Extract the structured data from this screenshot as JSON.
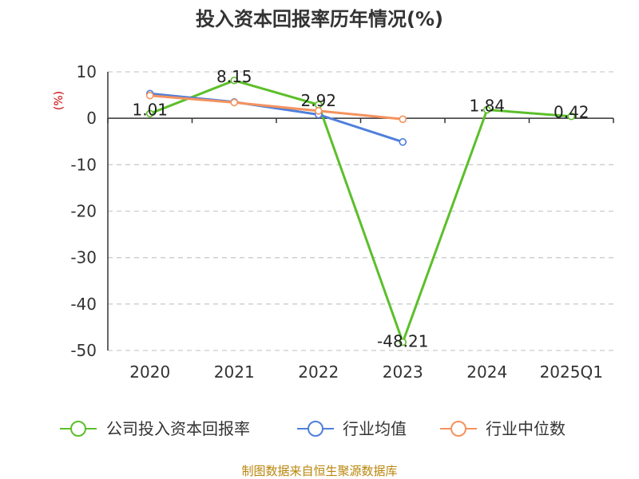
{
  "chart_data": {
    "type": "line",
    "title": "投入资本回报率历年情况(%)",
    "ylabel": "(%)",
    "xlabel": "",
    "categories": [
      "2020",
      "2021",
      "2022",
      "2023",
      "2024",
      "2025Q1"
    ],
    "ylim": [
      -50,
      10
    ],
    "yticks": [
      10,
      0,
      -10,
      -20,
      -30,
      -40,
      -50
    ],
    "grid": true,
    "legend_position": "bottom",
    "series": [
      {
        "name": "公司投入资本回报率",
        "color": "#5cbf2a",
        "values": [
          1.01,
          8.15,
          2.92,
          -48.21,
          1.84,
          0.42
        ],
        "labels": [
          "1.01",
          "8.15",
          "2.92",
          "-48.21",
          "1.84",
          "0.42"
        ]
      },
      {
        "name": "行业均值",
        "color": "#4f7fdb",
        "values": [
          5.3,
          3.5,
          0.8,
          -5.1,
          null,
          null
        ]
      },
      {
        "name": "行业中位数",
        "color": "#f5925e",
        "values": [
          4.9,
          3.4,
          1.6,
          -0.2,
          null,
          null
        ]
      }
    ]
  },
  "footer": "制图数据来自恒生聚源数据库"
}
